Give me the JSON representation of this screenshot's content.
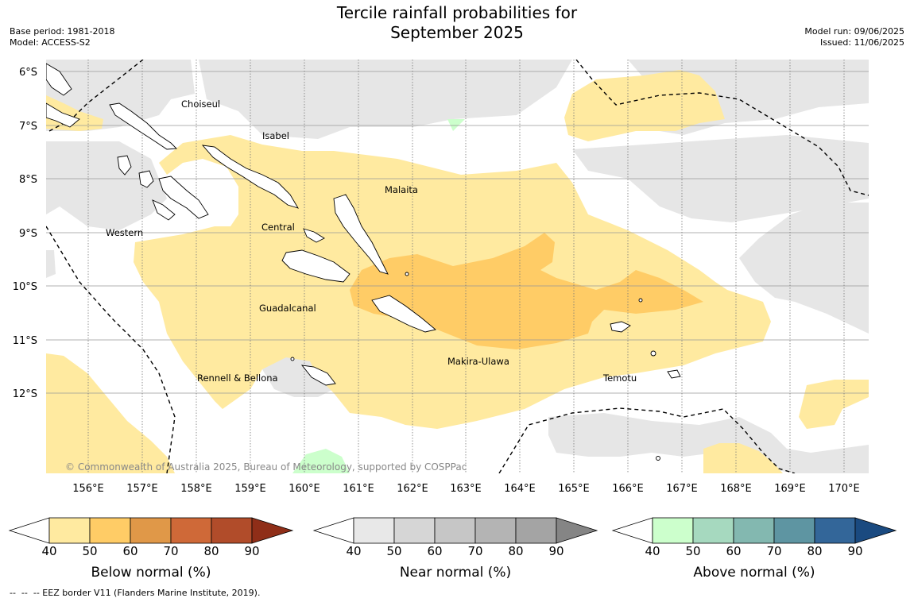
{
  "title": {
    "line1": "Tercile rainfall probabilities for",
    "line2": "September 2025"
  },
  "meta_left": {
    "base_period": "Base period: 1981-2018",
    "model": "Model: ACCESS-S2"
  },
  "meta_right": {
    "model_run": "Model run: 09/06/2025",
    "issued": "Issued: 11/06/2025"
  },
  "map": {
    "lat_labels": [
      "6°S",
      "7°S",
      "8°S",
      "9°S",
      "10°S",
      "11°S",
      "12°S"
    ],
    "lon_labels": [
      "156°E",
      "157°E",
      "158°E",
      "159°E",
      "160°E",
      "161°E",
      "162°E",
      "163°E",
      "164°E",
      "165°E",
      "166°E",
      "167°E",
      "168°E",
      "169°E",
      "170°E"
    ],
    "provinces": [
      "Choiseul",
      "Isabel",
      "Malaita",
      "Western",
      "Central",
      "Guadalcanal",
      "Makira-Ulawa",
      "Rennell & Bellona",
      "Temotu"
    ],
    "copyright": "© Commonwealth of Australia 2025, Bureau of Meteorology, supported by COSPPac",
    "colors": {
      "below_50_60": "#ffeaa0",
      "below_60_70": "#ffcc66",
      "near_40_50": "#e6e6e6",
      "above_40_50": "#ccffcc",
      "grid": "#888888",
      "coast": "#000000"
    }
  },
  "colorbars": {
    "ticks": [
      "40",
      "50",
      "60",
      "70",
      "80",
      "90"
    ],
    "below": {
      "title": "Below normal (%)",
      "colors": [
        "#ffeaa0",
        "#ffcc66",
        "#e09848",
        "#cf6938",
        "#b14c2a",
        "#8f2e18"
      ]
    },
    "near": {
      "title": "Near normal (%)",
      "colors": [
        "#e8e8e8",
        "#d6d6d6",
        "#c6c6c6",
        "#b4b4b4",
        "#a4a4a4",
        "#858585"
      ]
    },
    "above": {
      "title": "Above normal (%)",
      "colors": [
        "#ccffcc",
        "#a6d9bf",
        "#83b8b0",
        "#5e95a2",
        "#336699",
        "#1a4a80"
      ]
    }
  },
  "footer": "--  --  -- EEZ border V11 (Flanders Marine Institute, 2019)."
}
